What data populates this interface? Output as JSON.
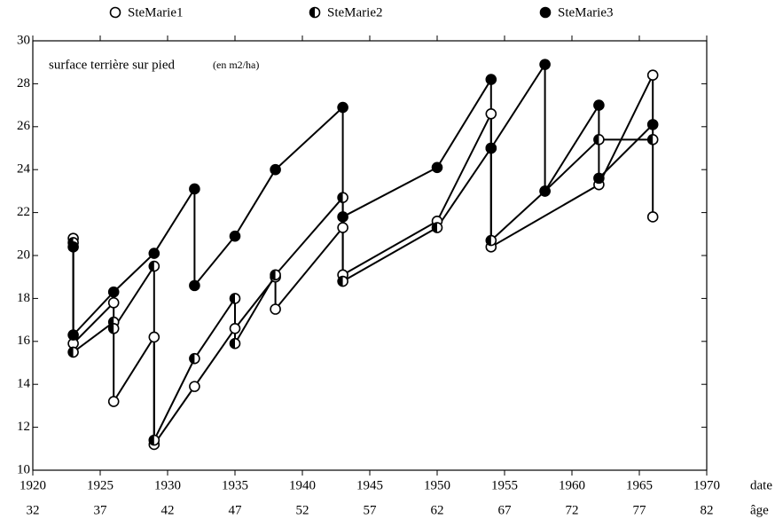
{
  "chart_data": {
    "type": "line",
    "annotation": "surface terrière sur pied",
    "annotation_unit": "(en m2/ha)",
    "xlabel": "date",
    "x2label": "âge",
    "xlim": [
      1920,
      1970
    ],
    "xticks": [
      1920,
      1925,
      1930,
      1935,
      1940,
      1945,
      1950,
      1955,
      1960,
      1965,
      1970
    ],
    "x2lim": [
      32,
      82
    ],
    "x2ticks": [
      32,
      37,
      42,
      47,
      52,
      57,
      62,
      67,
      72,
      77,
      82
    ],
    "ylim": [
      10,
      30
    ],
    "yticks": [
      10,
      12,
      14,
      16,
      18,
      20,
      22,
      24,
      26,
      28,
      30
    ],
    "series": [
      {
        "name": "SteMarie1",
        "color": "#000000",
        "marker": "open",
        "x": [
          1923,
          1923,
          1926,
          1926,
          1929,
          1929,
          1932,
          1935,
          1938,
          1938,
          1943,
          1943,
          1950,
          1954,
          1954,
          1962,
          1966,
          1966
        ],
        "values": [
          20.8,
          15.9,
          17.8,
          13.2,
          16.2,
          11.2,
          13.9,
          16.6,
          19.0,
          17.5,
          21.3,
          19.1,
          21.6,
          26.6,
          20.4,
          23.3,
          28.4,
          21.8
        ]
      },
      {
        "name": "SteMarie2",
        "color": "#000000",
        "marker": "half",
        "x": [
          1923,
          1923,
          1926,
          1926,
          1929,
          1929,
          1932,
          1935,
          1935,
          1938,
          1943,
          1943,
          1950,
          1954,
          1954,
          1958,
          1962,
          1966
        ],
        "values": [
          20.6,
          15.5,
          16.9,
          16.6,
          19.5,
          11.4,
          15.2,
          18.0,
          15.9,
          19.1,
          22.7,
          18.8,
          21.3,
          25.0,
          20.7,
          23.0,
          25.4,
          25.4
        ]
      },
      {
        "name": "SteMarie3",
        "color": "#000000",
        "marker": "filled",
        "x": [
          1923,
          1923,
          1926,
          1929,
          1932,
          1932,
          1935,
          1938,
          1943,
          1943,
          1950,
          1954,
          1954,
          1958,
          1958,
          1962,
          1962,
          1966
        ],
        "values": [
          20.4,
          16.3,
          18.3,
          20.1,
          23.1,
          18.6,
          20.9,
          24.0,
          26.9,
          21.8,
          24.1,
          28.2,
          25.0,
          28.9,
          23.0,
          27.0,
          23.6,
          26.1
        ]
      }
    ]
  }
}
